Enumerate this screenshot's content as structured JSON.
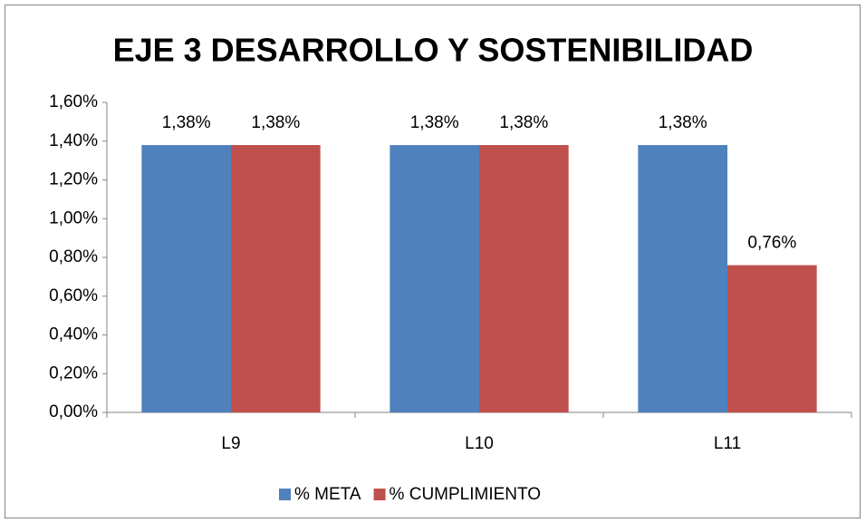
{
  "chart_data": {
    "type": "bar",
    "title": "EJE 3 DESARROLLO Y SOSTENIBILIDAD",
    "categories": [
      "L9",
      "L10",
      "L11"
    ],
    "series": [
      {
        "name": "% META",
        "color": "#4f81bd",
        "values": [
          1.38,
          1.38,
          1.38
        ],
        "value_labels": [
          "1,38%",
          "1,38%",
          "1,38%"
        ]
      },
      {
        "name": "% CUMPLIMIENTO",
        "color": "#c0504d",
        "values": [
          1.38,
          1.38,
          0.76
        ],
        "value_labels": [
          "1,38%",
          "1,38%",
          "0,76%"
        ]
      }
    ],
    "ylim": [
      0,
      1.6
    ],
    "yticks": [
      {
        "value": 0,
        "label": "0,00%"
      },
      {
        "value": 0.2,
        "label": "0,20%"
      },
      {
        "value": 0.4,
        "label": "0,40%"
      },
      {
        "value": 0.6,
        "label": "0,60%"
      },
      {
        "value": 0.8,
        "label": "0,80%"
      },
      {
        "value": 1.0,
        "label": "1,00%"
      },
      {
        "value": 1.2,
        "label": "1,20%"
      },
      {
        "value": 1.4,
        "label": "1,40%"
      },
      {
        "value": 1.6,
        "label": "1,60%"
      }
    ],
    "grid": false,
    "legend": "bottom"
  }
}
